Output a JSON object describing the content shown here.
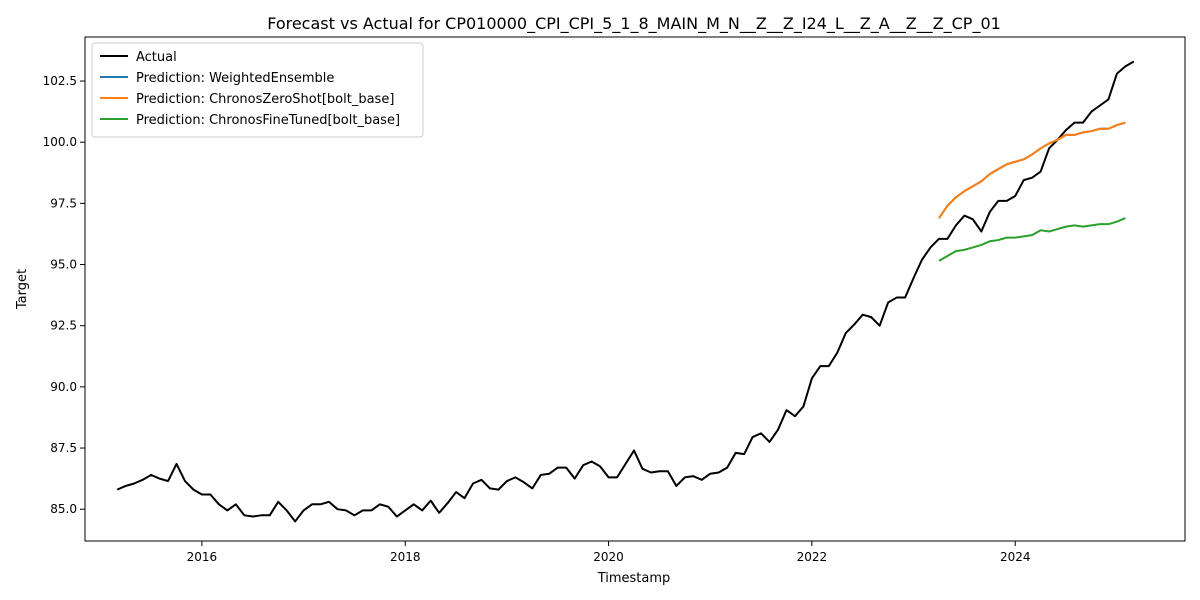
{
  "chart_data": {
    "type": "line",
    "title": "Forecast vs Actual for CP010000_CPI_CPI_5_1_8_MAIN_M_N__Z__Z_I24_L__Z_A__Z__Z_CP_01",
    "xlabel": "Timestamp",
    "ylabel": "Target",
    "xlim": [
      2014.85,
      2025.67
    ],
    "ylim": [
      83.7,
      104.3
    ],
    "x_ticks": [
      2016,
      2018,
      2020,
      2022,
      2024
    ],
    "x_tick_labels": [
      "2016",
      "2018",
      "2020",
      "2022",
      "2024"
    ],
    "y_ticks": [
      85.0,
      87.5,
      90.0,
      92.5,
      95.0,
      97.5,
      100.0,
      102.5
    ],
    "y_tick_labels": [
      "85.0",
      "87.5",
      "90.0",
      "92.5",
      "95.0",
      "97.5",
      "100.0",
      "102.5"
    ],
    "grid": false,
    "legend_position": "top-left",
    "series": [
      {
        "name": "Actual",
        "color": "#000000",
        "x_start": 2015.167,
        "x_step": 0.08333,
        "values": [
          85.8,
          85.95,
          86.05,
          86.2,
          86.4,
          86.25,
          86.15,
          86.85,
          86.15,
          85.8,
          85.6,
          85.6,
          85.2,
          84.95,
          85.2,
          84.75,
          84.7,
          84.75,
          84.75,
          85.3,
          84.95,
          84.5,
          84.95,
          85.2,
          85.2,
          85.3,
          85.0,
          84.95,
          84.75,
          84.95,
          84.95,
          85.2,
          85.1,
          84.7,
          84.95,
          85.2,
          84.95,
          85.35,
          84.85,
          85.25,
          85.7,
          85.45,
          86.05,
          86.2,
          85.85,
          85.8,
          86.15,
          86.3,
          86.1,
          85.85,
          86.4,
          86.45,
          86.7,
          86.7,
          86.25,
          86.8,
          86.95,
          86.75,
          86.3,
          86.3,
          86.85,
          87.4,
          86.65,
          86.5,
          86.55,
          86.55,
          85.95,
          86.3,
          86.35,
          86.2,
          86.45,
          86.5,
          86.7,
          87.3,
          87.25,
          87.95,
          88.1,
          87.75,
          88.25,
          89.05,
          88.8,
          89.2,
          90.35,
          90.85,
          90.85,
          91.4,
          92.2,
          92.55,
          92.95,
          92.85,
          92.5,
          93.45,
          93.65,
          93.65,
          94.45,
          95.2,
          95.7,
          96.05,
          96.05,
          96.6,
          97.0,
          96.85,
          96.35,
          97.15,
          97.6,
          97.6,
          97.8,
          98.45,
          98.55,
          98.8,
          99.75,
          100.1,
          100.5,
          100.8,
          100.8,
          101.25,
          101.5,
          101.75,
          102.8,
          103.1,
          103.3
        ]
      },
      {
        "name": "Prediction: WeightedEnsemble",
        "color": "#1f77b4",
        "x_start": 2023.25,
        "x_step": 0.08333,
        "values": [
          96.9,
          97.4,
          97.75,
          98.0,
          98.2,
          98.4,
          98.7,
          98.9,
          99.1,
          99.2,
          99.3,
          99.5,
          99.75,
          99.95,
          100.1,
          100.3,
          100.3,
          100.4,
          100.45,
          100.55,
          100.55,
          100.7,
          100.8
        ]
      },
      {
        "name": "Prediction: ChronosZeroShot[bolt_base]",
        "color": "#ff7f0e",
        "x_start": 2023.25,
        "x_step": 0.08333,
        "values": [
          96.9,
          97.4,
          97.75,
          98.0,
          98.2,
          98.4,
          98.7,
          98.9,
          99.1,
          99.2,
          99.3,
          99.5,
          99.75,
          99.95,
          100.1,
          100.3,
          100.3,
          100.4,
          100.45,
          100.55,
          100.55,
          100.7,
          100.8
        ]
      },
      {
        "name": "Prediction: ChronosFineTuned[bolt_base]",
        "color": "#2ca02c",
        "x_start": 2023.25,
        "x_step": 0.08333,
        "values": [
          95.15,
          95.35,
          95.55,
          95.6,
          95.7,
          95.8,
          95.95,
          96.0,
          96.1,
          96.1,
          96.15,
          96.2,
          96.4,
          96.35,
          96.45,
          96.55,
          96.6,
          96.55,
          96.6,
          96.65,
          96.65,
          96.75,
          96.9
        ]
      }
    ]
  }
}
